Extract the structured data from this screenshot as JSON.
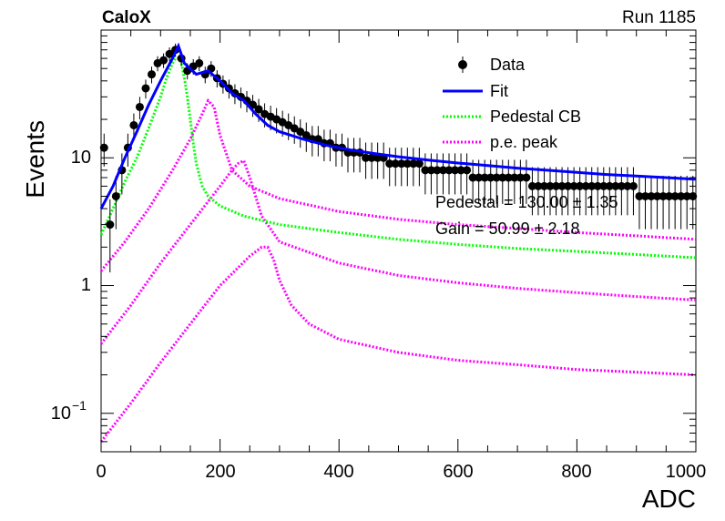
{
  "chart_data": {
    "type": "scatter",
    "title_left": "CaloX",
    "title_right": "Run 1185",
    "xlabel": "ADC",
    "ylabel": "Events",
    "xlim": [
      0,
      1000
    ],
    "ylim": [
      0.05,
      100
    ],
    "yscale": "log",
    "x_ticks": [
      0,
      200,
      400,
      600,
      800,
      1000
    ],
    "x_tick_labels": [
      "0",
      "200",
      "400",
      "600",
      "800",
      "1000"
    ],
    "y_tick_labels": {
      "base": "10",
      "exp": "−1",
      "one": "1",
      "ten": "10"
    },
    "legend": {
      "placement": "top-right",
      "entries": [
        {
          "label": "Data",
          "color": "#000000",
          "style": "marker"
        },
        {
          "label": "Fit",
          "color": "#0000ff",
          "style": "solid"
        },
        {
          "label": "Pedestal CB",
          "color": "#00ff00",
          "style": "dotted"
        },
        {
          "label": "p.e. peak",
          "color": "#ff00ff",
          "style": "dotted"
        }
      ]
    },
    "annotations": [
      "Pedestal = 130.00 ± 1.35",
      "Gain = 50.99 ± 2.18"
    ],
    "data": {
      "name": "Data",
      "x": [
        5,
        15,
        25,
        35,
        45,
        55,
        65,
        75,
        85,
        95,
        105,
        115,
        125,
        135,
        145,
        155,
        165,
        175,
        185,
        195,
        205,
        215,
        225,
        235,
        245,
        255,
        265,
        275,
        285,
        295,
        305,
        315,
        325,
        335,
        345,
        355,
        365,
        375,
        385,
        395,
        405,
        415,
        425,
        435,
        445,
        455,
        465,
        475,
        485,
        495,
        505,
        515,
        525,
        535,
        545,
        555,
        565,
        575,
        585,
        595,
        605,
        615,
        625,
        635,
        645,
        655,
        665,
        675,
        685,
        695,
        705,
        715,
        725,
        735,
        745,
        755,
        765,
        775,
        785,
        795,
        805,
        815,
        825,
        835,
        845,
        855,
        865,
        875,
        885,
        895,
        905,
        915,
        925,
        935,
        945,
        955,
        965,
        975,
        985,
        995
      ],
      "y": [
        12,
        3,
        5,
        8,
        12,
        18,
        25,
        35,
        45,
        55,
        58,
        65,
        70,
        60,
        48,
        52,
        55,
        45,
        50,
        42,
        38,
        35,
        32,
        30,
        28,
        26,
        24,
        22,
        21,
        20,
        19,
        18,
        17,
        16,
        15,
        14,
        14,
        13,
        13,
        12,
        12,
        11,
        11,
        11,
        10,
        10,
        10,
        10,
        9,
        9,
        9,
        9,
        9,
        9,
        8,
        8,
        8,
        8,
        8,
        8,
        8,
        8,
        7,
        7,
        7,
        7,
        7,
        7,
        7,
        7,
        7,
        7,
        6,
        6,
        6,
        6,
        6,
        6,
        6,
        6,
        6,
        6,
        6,
        6,
        6,
        6,
        6,
        6,
        6,
        6,
        5,
        5,
        5,
        5,
        5,
        5,
        5,
        5,
        5,
        5
      ]
    },
    "fit": {
      "name": "Fit",
      "x": [
        0,
        20,
        40,
        60,
        80,
        100,
        120,
        130,
        140,
        160,
        180,
        200,
        220,
        240,
        260,
        280,
        300,
        340,
        380,
        420,
        460,
        500,
        550,
        600,
        650,
        700,
        750,
        800,
        850,
        900,
        950,
        1000
      ],
      "y": [
        4,
        6,
        10,
        16,
        26,
        40,
        60,
        75,
        55,
        45,
        48,
        40,
        32,
        28,
        22,
        18,
        16,
        14,
        12.5,
        11.5,
        10.8,
        10.2,
        9.6,
        9.1,
        8.7,
        8.3,
        8.0,
        7.7,
        7.4,
        7.2,
        7.0,
        6.8
      ]
    },
    "pedestal_cb": {
      "name": "Pedestal CB",
      "x": [
        0,
        20,
        40,
        60,
        80,
        100,
        110,
        120,
        125,
        130,
        135,
        140,
        145,
        150,
        155,
        160,
        170,
        180,
        200,
        240,
        300,
        400,
        500,
        600,
        700,
        800,
        900,
        1000
      ],
      "y": [
        2.5,
        4,
        6.5,
        10,
        17,
        30,
        42,
        55,
        60,
        60,
        55,
        42,
        30,
        20,
        13,
        9,
        6,
        5,
        4.2,
        3.5,
        3.0,
        2.6,
        2.3,
        2.1,
        1.95,
        1.85,
        1.75,
        1.65
      ]
    },
    "pe_peaks": [
      {
        "name": "p.e. peak 1",
        "x": [
          0,
          40,
          80,
          120,
          150,
          170,
          180,
          190,
          200,
          220,
          250,
          300,
          400,
          500,
          600,
          700,
          800,
          900,
          1000
        ],
        "y": [
          1.3,
          2.2,
          4,
          8,
          14,
          22,
          28,
          25,
          15,
          8,
          6,
          4.8,
          3.8,
          3.3,
          3.0,
          2.8,
          2.6,
          2.45,
          2.3
        ]
      },
      {
        "name": "p.e. peak 2",
        "x": [
          0,
          50,
          100,
          150,
          200,
          220,
          230,
          240,
          250,
          270,
          300,
          400,
          500,
          600,
          700,
          800,
          900,
          1000
        ],
        "y": [
          0.35,
          0.7,
          1.5,
          3,
          6,
          8,
          9,
          9.5,
          7,
          3.5,
          2.2,
          1.5,
          1.2,
          1.05,
          0.95,
          0.88,
          0.82,
          0.77
        ]
      },
      {
        "name": "p.e. peak 3",
        "x": [
          0,
          50,
          100,
          150,
          200,
          250,
          270,
          280,
          290,
          300,
          320,
          350,
          400,
          500,
          600,
          700,
          800,
          900,
          1000
        ],
        "y": [
          0.06,
          0.12,
          0.25,
          0.5,
          1,
          1.7,
          2.0,
          2.0,
          1.6,
          1.1,
          0.7,
          0.5,
          0.38,
          0.3,
          0.26,
          0.24,
          0.22,
          0.21,
          0.2
        ]
      }
    ]
  }
}
